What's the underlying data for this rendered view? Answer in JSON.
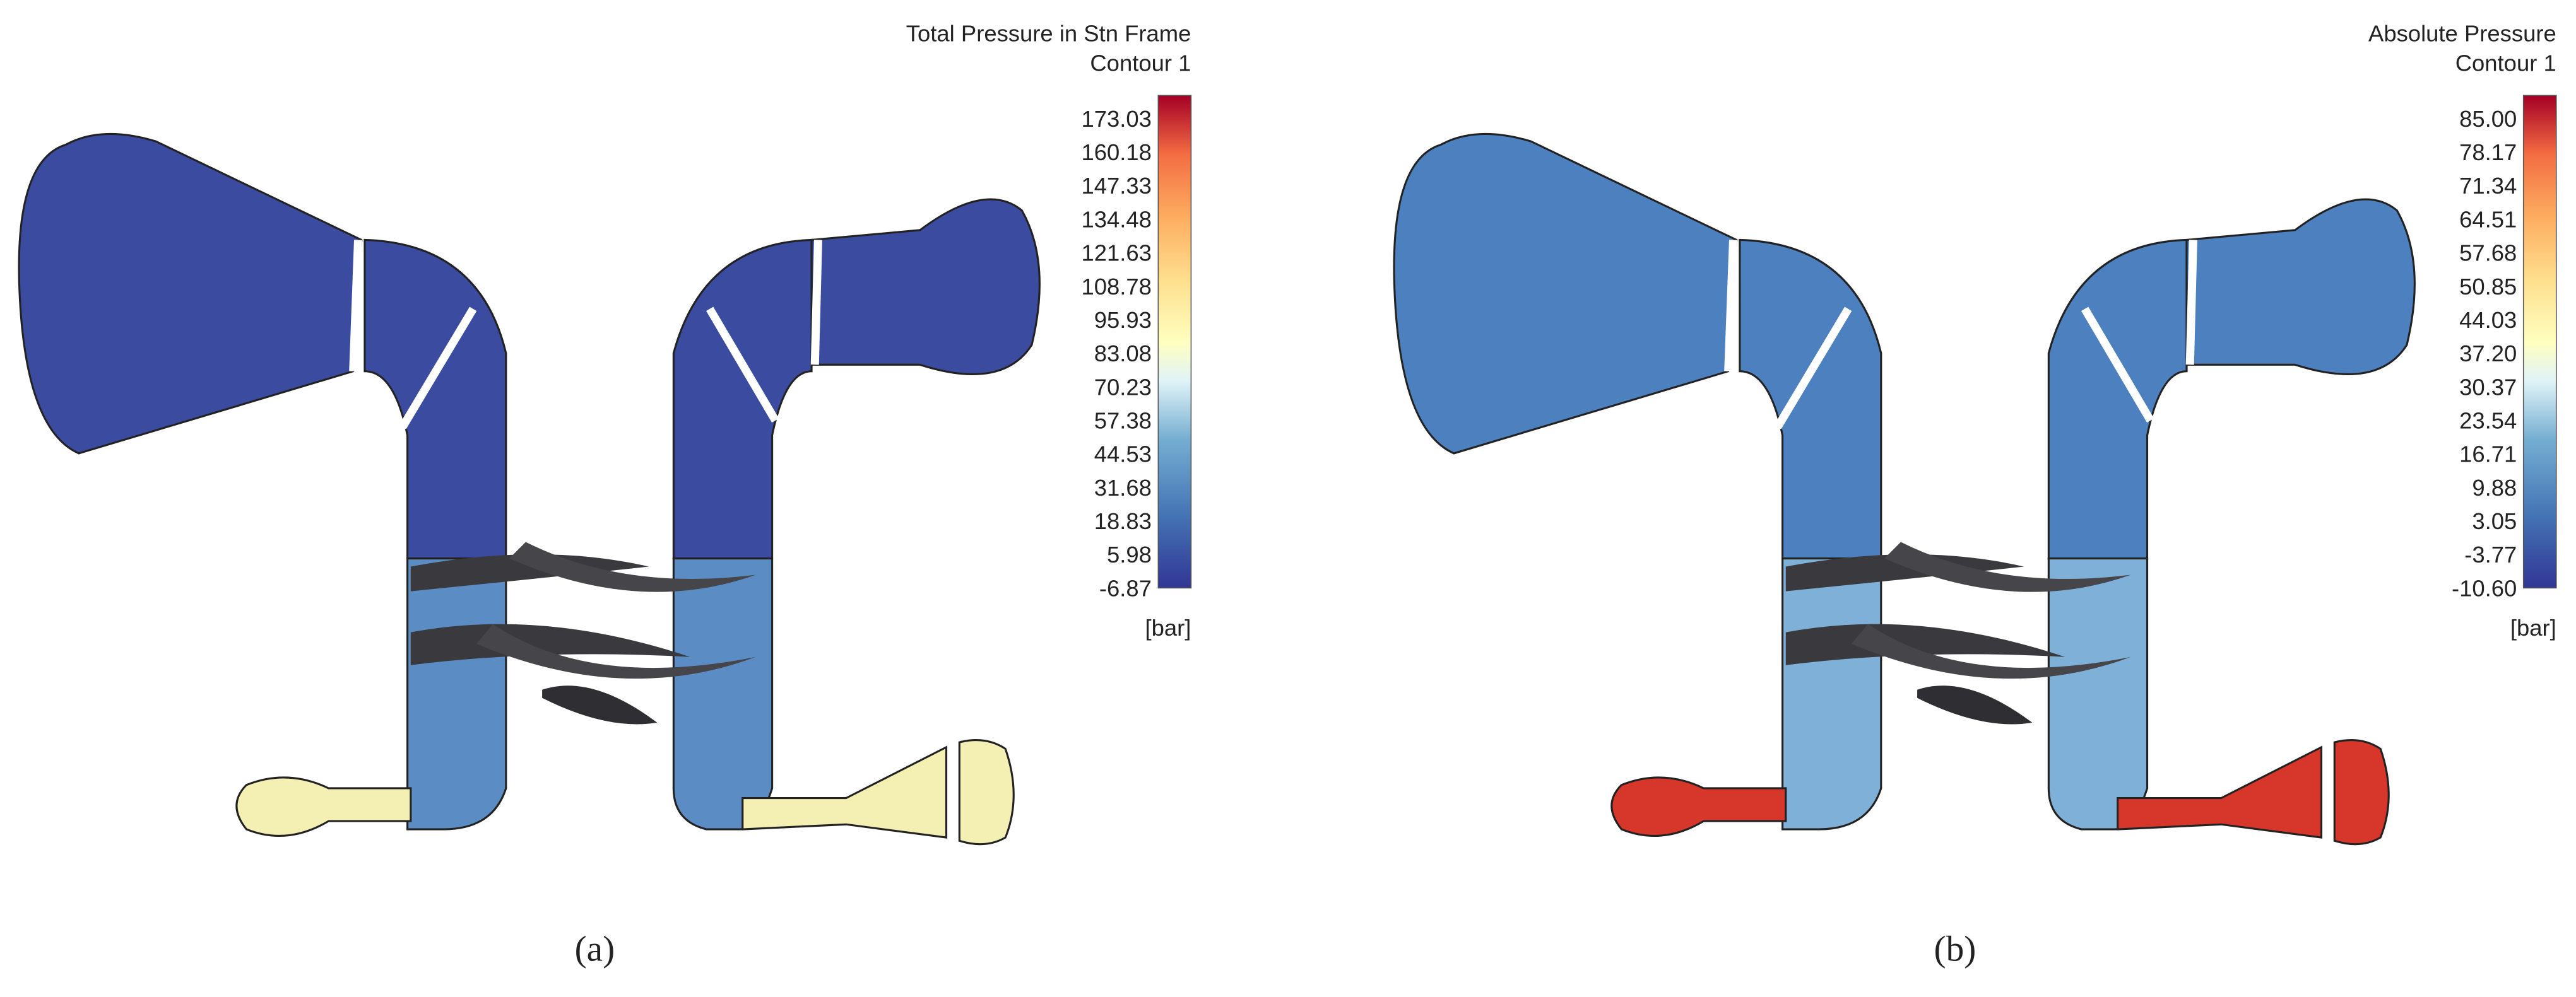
{
  "panels": [
    {
      "title": "Total Pressure in Stn Frame",
      "subtitle": "Contour 1",
      "scale_labels": [
        "173.03",
        "160.18",
        "147.33",
        "134.48",
        "121.63",
        "108.78",
        "95.93",
        "83.08",
        "70.23",
        "57.38",
        "44.53",
        "31.68",
        "18.83",
        "5.98",
        "-6.87"
      ],
      "unit": "[bar]",
      "caption": "(a)"
    },
    {
      "title": "Absolute Pressure",
      "subtitle": "Contour 1",
      "scale_labels": [
        "85.00",
        "78.17",
        "71.34",
        "64.51",
        "57.68",
        "50.85",
        "44.03",
        "37.20",
        "30.37",
        "23.54",
        "16.71",
        "9.88",
        "3.05",
        "-3.77",
        "-10.60"
      ],
      "unit": "[bar]",
      "caption": "(b)"
    }
  ]
}
